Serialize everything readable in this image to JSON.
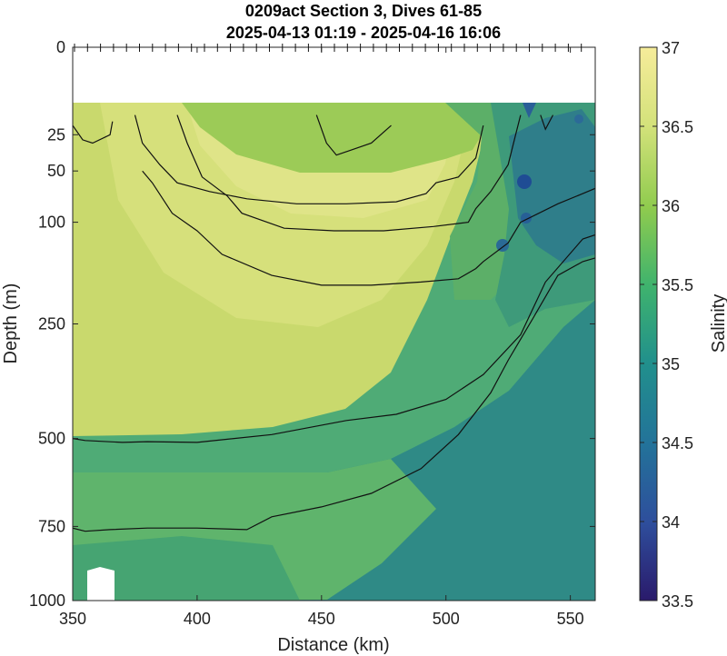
{
  "chart_data": {
    "type": "heatmap",
    "title": "0209act Section 3, Dives 61-85",
    "subtitle": "2025-04-13 01:19 - 2025-04-16 16:06",
    "xlabel": "Distance (km)",
    "ylabel": "Depth (m)",
    "colorbar_label": "Salinity",
    "xlim": [
      350,
      560
    ],
    "x_ticks": [
      350,
      400,
      450,
      500,
      550
    ],
    "y_ticks": [
      0,
      25,
      50,
      100,
      250,
      500,
      750,
      1000
    ],
    "y_scale": "square-root, reversed (0 at top)",
    "colorbar_ticks": [
      33.5,
      34,
      34.5,
      35,
      35.5,
      36,
      36.5,
      37
    ],
    "clim": [
      33.5,
      37
    ],
    "colormap": [
      "#2a1a6b",
      "#2e4e9c",
      "#23729a",
      "#21908c",
      "#3fb36d",
      "#8fcb4e",
      "#d4e27b",
      "#f6ec9a"
    ],
    "data_depth_range_m": [
      15,
      1000
    ],
    "contours": [
      {
        "level": "upper-left",
        "points": [
          [
            350,
            20
          ],
          [
            354,
            28
          ],
          [
            358,
            30
          ],
          [
            365,
            25
          ],
          [
            366,
            18
          ]
        ]
      },
      {
        "level": "surface-core",
        "points": [
          [
            375,
            15
          ],
          [
            378,
            30
          ],
          [
            385,
            45
          ],
          [
            392,
            60
          ],
          [
            405,
            68
          ],
          [
            420,
            75
          ],
          [
            440,
            80
          ],
          [
            460,
            80
          ],
          [
            480,
            78
          ],
          [
            492,
            70
          ],
          [
            496,
            60
          ],
          [
            505,
            55
          ],
          [
            512,
            40
          ],
          [
            515,
            20
          ]
        ]
      },
      {
        "level": "mid-core",
        "points": [
          [
            392,
            15
          ],
          [
            396,
            30
          ],
          [
            402,
            55
          ],
          [
            412,
            72
          ],
          [
            418,
            90
          ],
          [
            435,
            107
          ],
          [
            455,
            110
          ],
          [
            475,
            110
          ],
          [
            495,
            105
          ],
          [
            509,
            100
          ],
          [
            512,
            85
          ],
          [
            518,
            68
          ],
          [
            525,
            45
          ],
          [
            528,
            25
          ],
          [
            530,
            15
          ]
        ]
      },
      {
        "level": "lower-core",
        "points": [
          [
            378,
            50
          ],
          [
            382,
            60
          ],
          [
            390,
            90
          ],
          [
            400,
            110
          ],
          [
            410,
            140
          ],
          [
            430,
            170
          ],
          [
            450,
            185
          ],
          [
            470,
            185
          ],
          [
            490,
            180
          ],
          [
            505,
            175
          ],
          [
            512,
            160
          ],
          [
            515,
            150
          ],
          [
            525,
            125
          ],
          [
            530,
            100
          ],
          [
            545,
            80
          ],
          [
            555,
            70
          ],
          [
            560,
            65
          ]
        ]
      },
      {
        "level": "pycnocline-upper",
        "points": [
          [
            350,
            500
          ],
          [
            355,
            505
          ],
          [
            370,
            510
          ],
          [
            380,
            508
          ],
          [
            400,
            510
          ],
          [
            430,
            490
          ],
          [
            460,
            455
          ],
          [
            480,
            440
          ],
          [
            500,
            405
          ],
          [
            515,
            350
          ],
          [
            530,
            270
          ],
          [
            540,
            180
          ],
          [
            555,
            120
          ],
          [
            560,
            115
          ]
        ]
      },
      {
        "level": "pycnocline-lower",
        "points": [
          [
            350,
            755
          ],
          [
            355,
            765
          ],
          [
            365,
            760
          ],
          [
            380,
            755
          ],
          [
            400,
            755
          ],
          [
            420,
            760
          ],
          [
            430,
            720
          ],
          [
            450,
            690
          ],
          [
            470,
            650
          ],
          [
            490,
            580
          ],
          [
            505,
            490
          ],
          [
            518,
            390
          ],
          [
            525,
            320
          ],
          [
            535,
            240
          ],
          [
            545,
            170
          ],
          [
            555,
            150
          ],
          [
            560,
            145
          ]
        ]
      },
      {
        "level": "shallow-right-a",
        "points": [
          [
            448,
            15
          ],
          [
            452,
            30
          ],
          [
            456,
            38
          ],
          [
            470,
            30
          ],
          [
            478,
            20
          ]
        ]
      },
      {
        "level": "shallow-right-b",
        "points": [
          [
            538,
            15
          ],
          [
            540,
            22
          ],
          [
            543,
            15
          ]
        ]
      }
    ]
  }
}
